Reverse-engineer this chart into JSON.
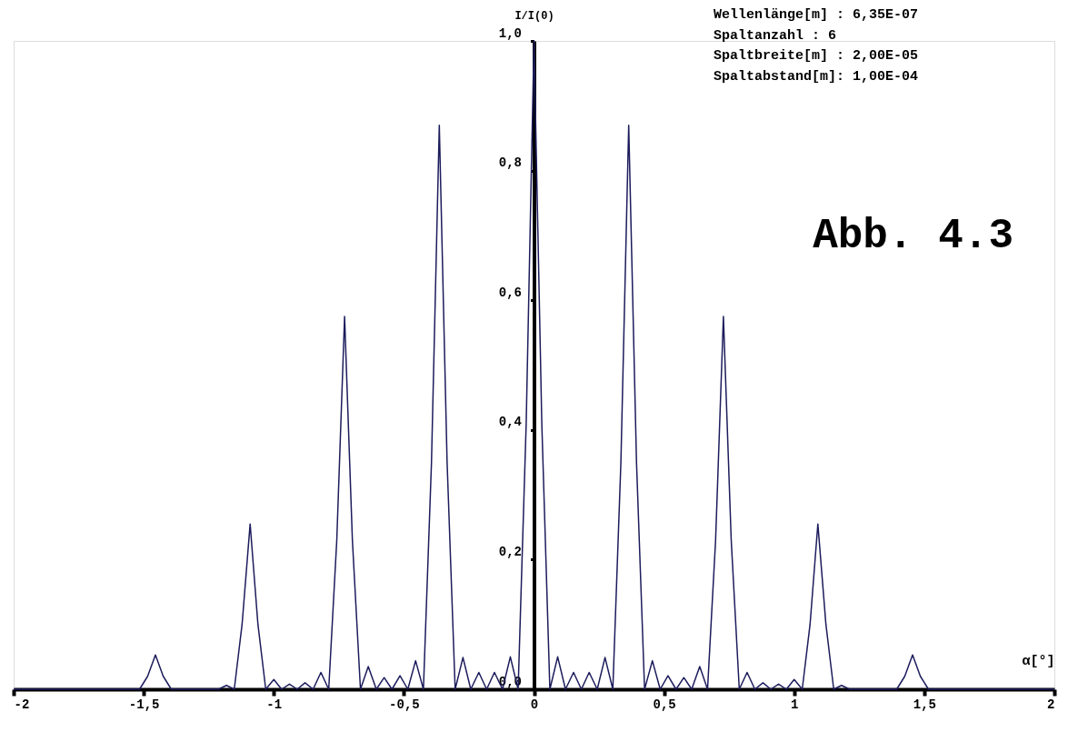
{
  "chart_data": {
    "type": "line",
    "xlabel": "α[°]",
    "ylabel": "I/I(0)",
    "annotations": [
      "Wellenlänge[m] : 6,35E-07",
      "Spaltanzahl    : 6",
      "Spaltbreite[m] : 2,00E-05",
      "Spaltabstand[m]: 1,00E-04",
      "Abb. 4.3"
    ],
    "x": [
      -2,
      -1.516,
      -1.485,
      -1.455,
      -1.425,
      -1.394,
      -1.213,
      -1.182,
      -1.152,
      -1.122,
      -1.091,
      -1.061,
      -1.031,
      -1.0,
      -0.97,
      -0.94,
      -0.91,
      -0.88,
      -0.849,
      -0.819,
      -0.789,
      -0.758,
      -0.728,
      -0.698,
      -0.667,
      -0.637,
      -0.606,
      -0.576,
      -0.546,
      -0.515,
      -0.485,
      -0.455,
      -0.425,
      -0.394,
      -0.364,
      -0.334,
      -0.303,
      -0.273,
      -0.243,
      -0.212,
      -0.182,
      -0.152,
      -0.121,
      -0.091,
      -0.061,
      -0.03,
      0,
      0.03,
      0.061,
      0.091,
      0.121,
      0.152,
      0.182,
      0.212,
      0.243,
      0.273,
      0.303,
      0.334,
      0.364,
      0.394,
      0.425,
      0.455,
      0.485,
      0.515,
      0.546,
      0.576,
      0.606,
      0.637,
      0.667,
      0.698,
      0.728,
      0.758,
      0.789,
      0.819,
      0.849,
      0.88,
      0.91,
      0.94,
      0.97,
      1.0,
      1.031,
      1.061,
      1.091,
      1.122,
      1.152,
      1.182,
      1.213,
      1.394,
      1.425,
      1.455,
      1.485,
      1.516,
      2
    ],
    "series": [
      {
        "color": "#1c1c5c",
        "values": [
          0,
          0,
          0.02,
          0.053,
          0.02,
          0,
          0,
          0.006,
          0,
          0.1,
          0.255,
          0.1,
          0,
          0.015,
          0,
          0.008,
          0,
          0.01,
          0,
          0.026,
          0,
          0.23,
          0.575,
          0.23,
          0,
          0.035,
          0,
          0.018,
          0,
          0.021,
          0,
          0.044,
          0,
          0.35,
          0.87,
          0.35,
          0,
          0.049,
          0,
          0.026,
          0,
          0.026,
          0,
          0.05,
          0,
          0.41,
          1,
          0.41,
          0,
          0.05,
          0,
          0.026,
          0,
          0.026,
          0,
          0.049,
          0,
          0.35,
          0.87,
          0.35,
          0,
          0.044,
          0,
          0.021,
          0,
          0.018,
          0,
          0.035,
          0,
          0.23,
          0.575,
          0.23,
          0,
          0.026,
          0,
          0.01,
          0,
          0.008,
          0,
          0.015,
          0,
          0.1,
          0.255,
          0.1,
          0,
          0.006,
          0,
          0,
          0.02,
          0.053,
          0.02,
          0,
          0
        ]
      }
    ],
    "xlim": [
      -2,
      2
    ],
    "ylim": [
      0,
      1
    ],
    "xticks": [
      -2,
      {
        "value": -1.5,
        "label": "-1,5"
      },
      -1,
      {
        "value": -0.5,
        "label": "-0,5"
      },
      0,
      {
        "value": 0.5,
        "label": "0,5"
      },
      1,
      {
        "value": 1.5,
        "label": "1,5"
      },
      2
    ],
    "yticks": [
      {
        "value": 0,
        "label": "0,0"
      },
      {
        "value": 0.2,
        "label": "0,2"
      },
      {
        "value": 0.4,
        "label": "0,4"
      },
      {
        "value": 0.6,
        "label": "0,6"
      },
      {
        "value": 0.8,
        "label": "0,8"
      },
      {
        "value": 1,
        "label": "1,0"
      }
    ],
    "grid": false,
    "legend": false,
    "marker": "none",
    "line_style": "solid"
  }
}
